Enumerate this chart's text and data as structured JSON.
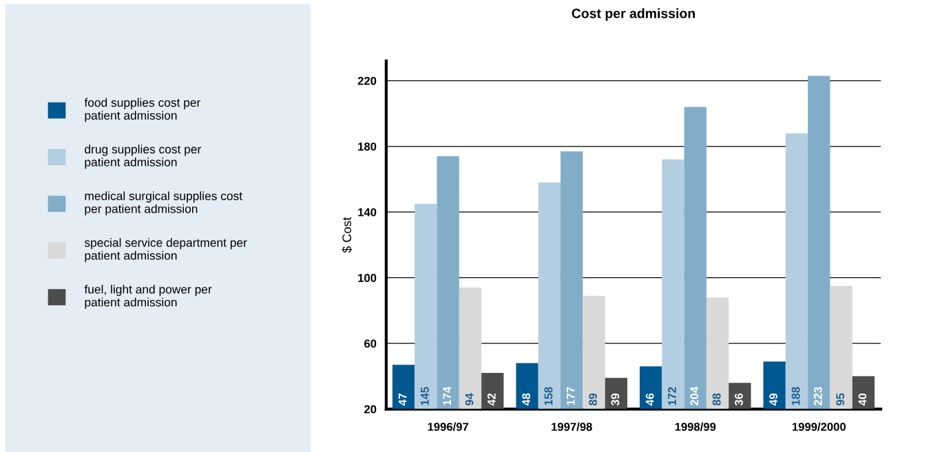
{
  "chart_data": {
    "type": "bar",
    "title": "Cost per admission",
    "ylabel": "$ Cost",
    "categories": [
      "1996/97",
      "1997/98",
      "1998/99",
      "1999/2000"
    ],
    "series": [
      {
        "name": "food supplies cost per\npatient admission",
        "color": "#005891",
        "values": [
          47,
          48,
          46,
          49
        ]
      },
      {
        "name": "drug supplies cost per\npatient admission",
        "color": "#b3cee0",
        "values": [
          145,
          158,
          172,
          188
        ]
      },
      {
        "name": "medical surgical supplies cost\nper patient admission",
        "color": "#81adc9",
        "values": [
          174,
          177,
          204,
          223
        ]
      },
      {
        "name": "special service department per\npatient admission",
        "color": "#d9d9d9",
        "values": [
          94,
          89,
          88,
          95
        ]
      },
      {
        "name": "fuel, light and power per\npatient admission",
        "color": "#4d4d4d",
        "values": [
          42,
          39,
          36,
          40
        ]
      }
    ],
    "ylim": [
      20,
      232
    ],
    "yticks": [
      20,
      60,
      100,
      140,
      180,
      220
    ],
    "grid": "y",
    "legend": "left",
    "data_labels": true
  }
}
